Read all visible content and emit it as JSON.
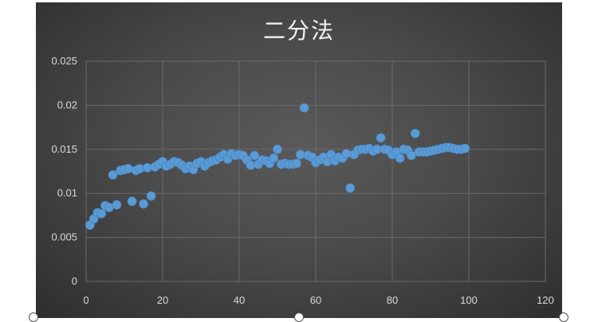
{
  "chart_data": {
    "type": "scatter",
    "title": "二分法",
    "xlabel": "",
    "ylabel": "",
    "xlim": [
      0,
      120
    ],
    "ylim": [
      0,
      0.025
    ],
    "x_ticks": [
      "0",
      "20",
      "40",
      "60",
      "80",
      "100",
      "120"
    ],
    "y_ticks": [
      "0",
      "0.005",
      "0.01",
      "0.015",
      "0.02",
      "0.025"
    ],
    "grid": true,
    "legend": "none",
    "colors": {
      "marker": "#5b9bd5",
      "background": "#404040",
      "grid": "#6a6a6a",
      "text": "#d9d9d9"
    },
    "series": [
      {
        "x": [
          1,
          2,
          3,
          4,
          5,
          6,
          7,
          8,
          9,
          10,
          11,
          12,
          13,
          14,
          15,
          16,
          17,
          18,
          19,
          20,
          21,
          22,
          23,
          24,
          25,
          26,
          27,
          28,
          29,
          30,
          31,
          32,
          33,
          34,
          35,
          36,
          37,
          38,
          39,
          40,
          41,
          42,
          43,
          44,
          45,
          46,
          47,
          48,
          49,
          50,
          51,
          52,
          53,
          54,
          55,
          56,
          57,
          58,
          59,
          60,
          61,
          62,
          63,
          64,
          65,
          66,
          67,
          68,
          69,
          70,
          71,
          72,
          73,
          74,
          75,
          76,
          77,
          78,
          79,
          80,
          81,
          82,
          83,
          84,
          85,
          86,
          87,
          88,
          89,
          90,
          91,
          92,
          93,
          94,
          95,
          96,
          97,
          98,
          99
        ],
        "y": [
          0.0064,
          0.0071,
          0.0078,
          0.0077,
          0.0086,
          0.0084,
          0.0121,
          0.0087,
          0.0126,
          0.0127,
          0.0128,
          0.0091,
          0.0126,
          0.0128,
          0.0088,
          0.0129,
          0.0097,
          0.013,
          0.0133,
          0.0136,
          0.0131,
          0.0133,
          0.0136,
          0.0135,
          0.0132,
          0.0128,
          0.0131,
          0.0127,
          0.0134,
          0.0136,
          0.0131,
          0.0135,
          0.0137,
          0.0138,
          0.0141,
          0.0144,
          0.0139,
          0.0145,
          0.0143,
          0.0144,
          0.0143,
          0.0138,
          0.0132,
          0.0143,
          0.0133,
          0.0138,
          0.0137,
          0.0134,
          0.014,
          0.015,
          0.0133,
          0.0134,
          0.0133,
          0.0133,
          0.0134,
          0.0144,
          0.0197,
          0.0143,
          0.0141,
          0.0135,
          0.0138,
          0.0141,
          0.0136,
          0.0144,
          0.0137,
          0.0141,
          0.014,
          0.0145,
          0.0106,
          0.0144,
          0.0149,
          0.015,
          0.015,
          0.0151,
          0.0148,
          0.015,
          0.0163,
          0.015,
          0.0149,
          0.0144,
          0.0147,
          0.014,
          0.015,
          0.0149,
          0.0143,
          0.0168,
          0.0147,
          0.0147,
          0.0147,
          0.0148,
          0.0149,
          0.015,
          0.0151,
          0.0152,
          0.0152,
          0.0151,
          0.015,
          0.015,
          0.0151
        ]
      }
    ]
  }
}
